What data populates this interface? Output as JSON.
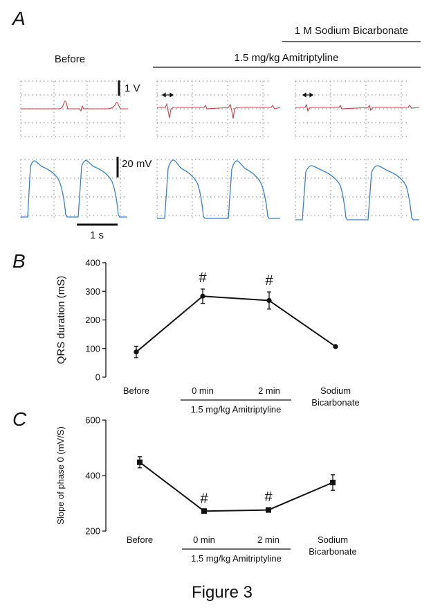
{
  "panel_a": {
    "letter": "A",
    "header_before": "Before",
    "header_drug": "1.5 mg/kg Amitriptyline",
    "header_bicarb": "1 M Sodium Bicarbonate",
    "scale_ecg": "1 V",
    "scale_ap": "20 mV",
    "scale_time": "1 s",
    "ecg_color": "#c0404a",
    "ap_color": "#3c7fc0"
  },
  "caption": "Figure 3",
  "chart_data": [
    {
      "panel": "B",
      "type": "line",
      "categories": [
        "Before",
        "0 min",
        "2 min",
        "Sodium Bicarbonate"
      ],
      "category_lines": [
        [
          "Before"
        ],
        [
          "0 min"
        ],
        [
          "2 min"
        ],
        [
          "Sodium",
          "Bicarbonate"
        ]
      ],
      "group_label": "1.5 mg/kg Amitriptyline",
      "values": [
        88,
        283,
        268,
        107
      ],
      "errors": [
        20,
        25,
        30,
        4
      ],
      "marker": "circle",
      "significance": [
        "",
        "#",
        "#",
        ""
      ],
      "ylabel": "QRS duration (mS)",
      "ylim": [
        0,
        400
      ],
      "yticks": [
        0,
        100,
        200,
        300,
        400
      ],
      "grid": false
    },
    {
      "panel": "C",
      "type": "line",
      "categories": [
        "Before",
        "0 min",
        "2 min",
        "Sodium Bicarbonate"
      ],
      "category_lines": [
        [
          "Before"
        ],
        [
          "0 min"
        ],
        [
          "2 min"
        ],
        [
          "Sodium",
          "Bicarbonate"
        ]
      ],
      "group_label": "1.5 mg/kg Amitriptyline",
      "values": [
        448,
        272,
        276,
        375
      ],
      "errors": [
        20,
        4,
        6,
        28
      ],
      "marker": "square",
      "significance": [
        "",
        "#",
        "#",
        ""
      ],
      "ylabel": "Slope of phase 0 (mV/S)",
      "ylim": [
        200,
        600
      ],
      "yticks": [
        200,
        400,
        600
      ],
      "grid": false
    }
  ]
}
